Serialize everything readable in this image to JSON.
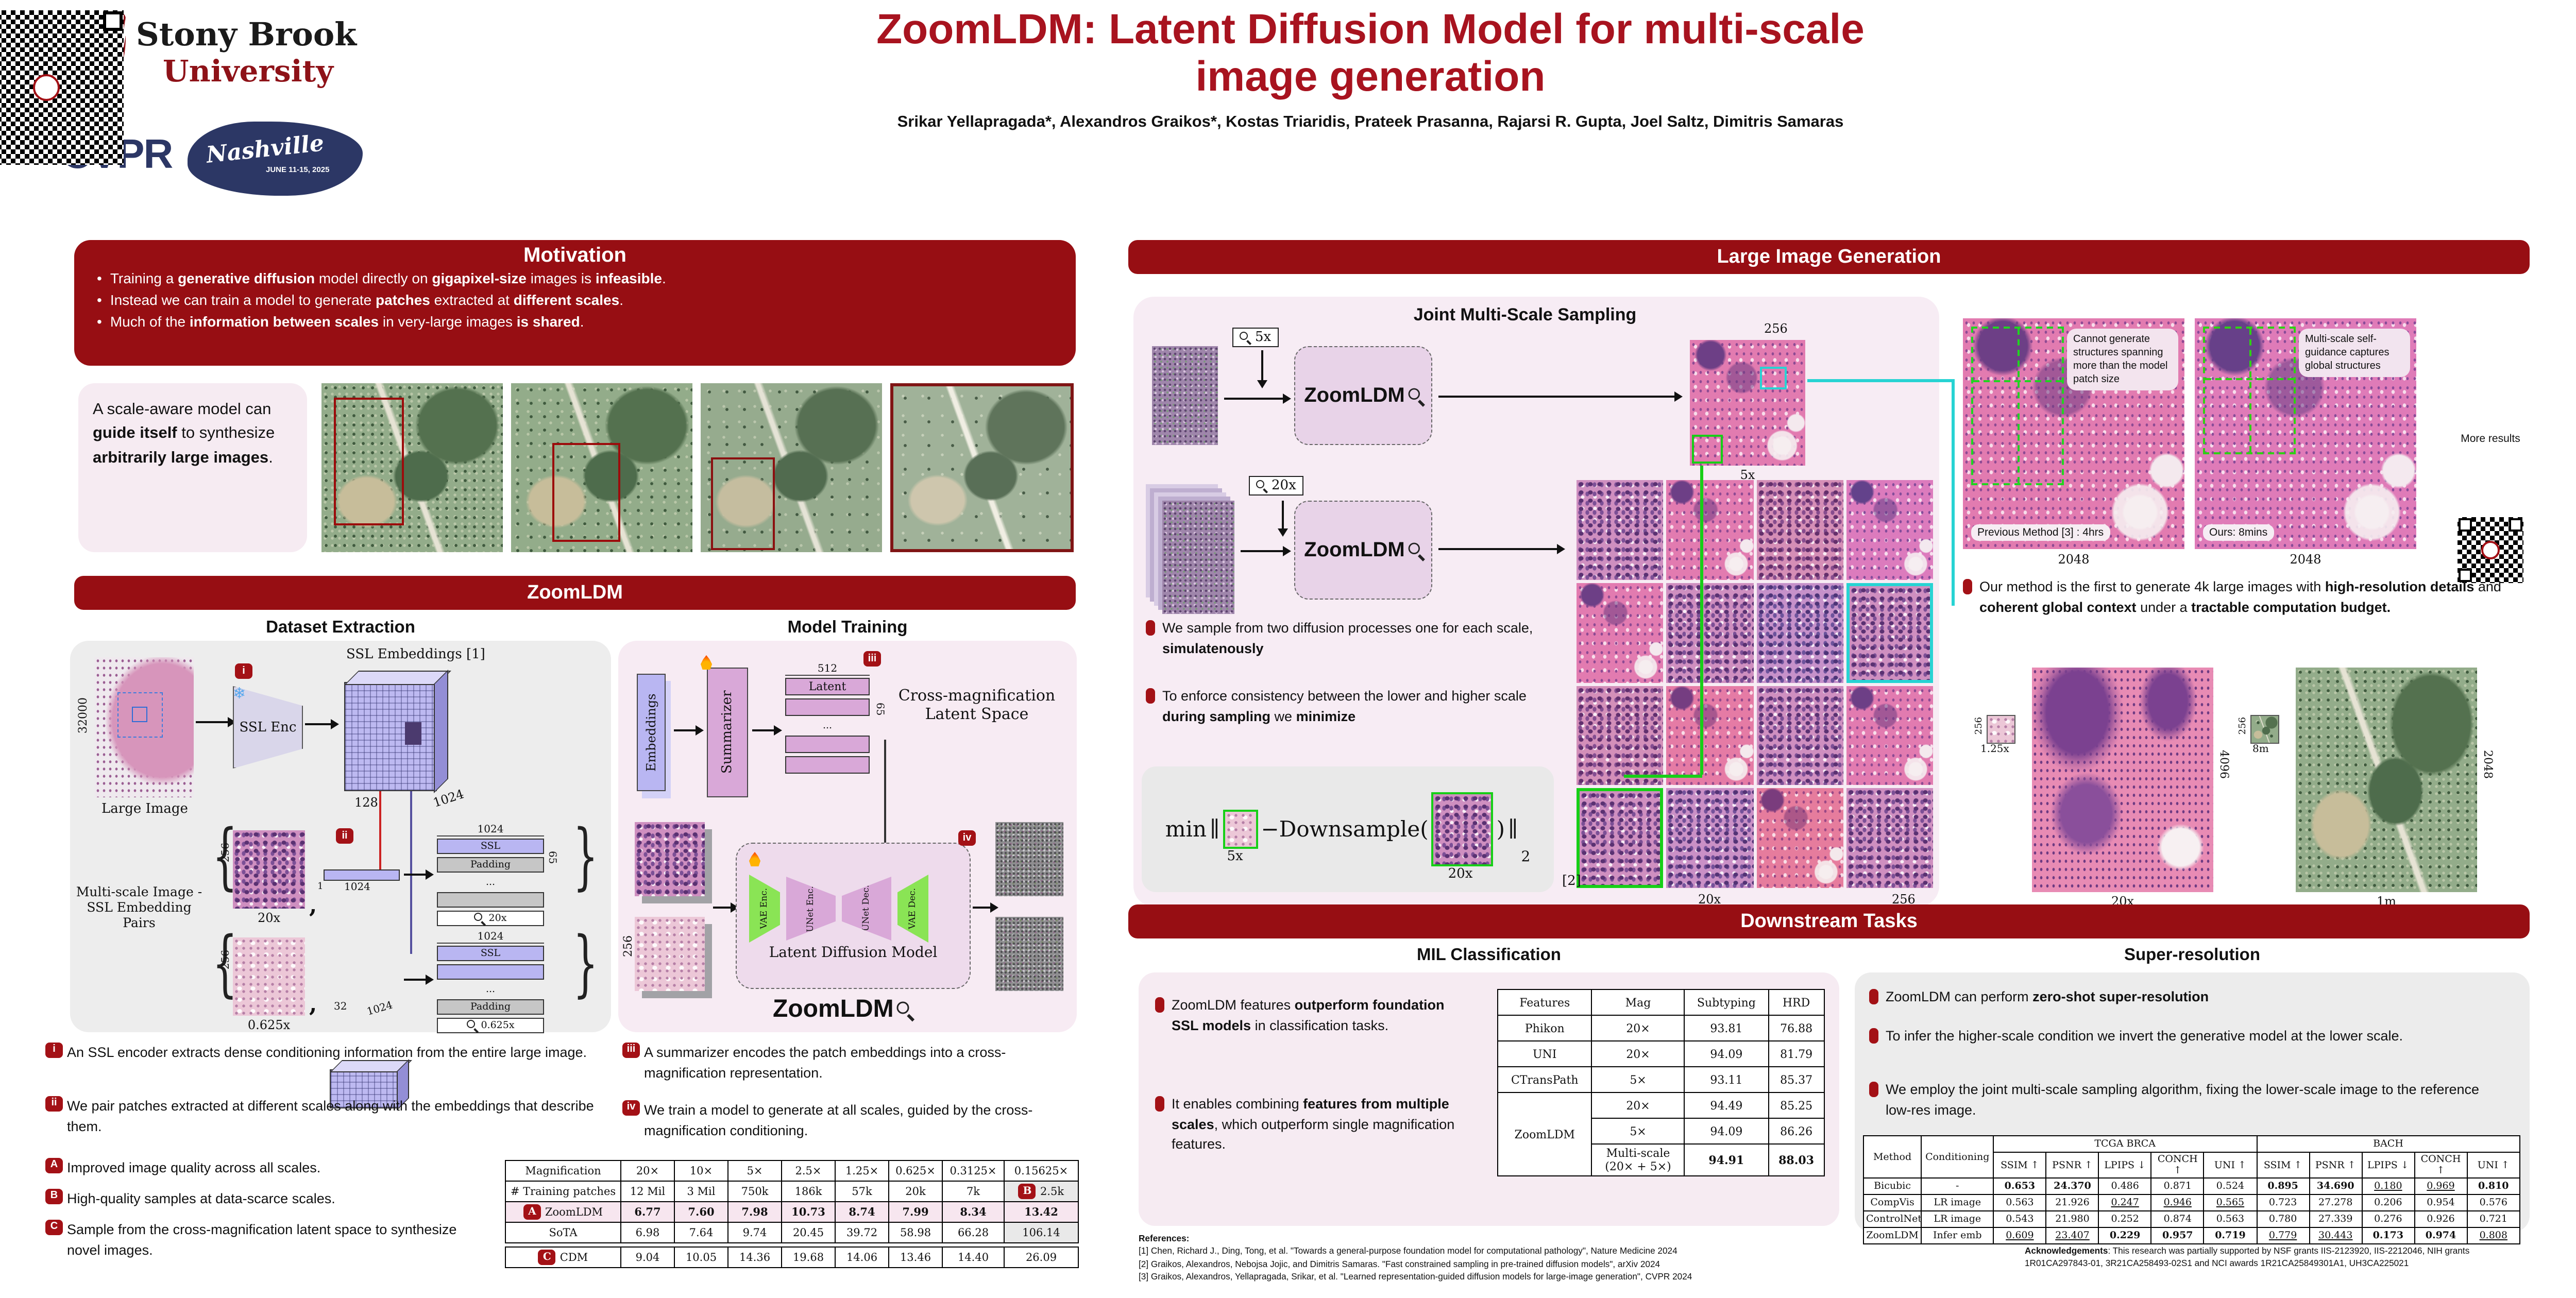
{
  "header": {
    "title_line1": "ZoomLDM: Latent Diffusion Model for multi-scale",
    "title_line2": "image generation",
    "authors": "Srikar Yellapragada*, Alexandros Graikos*, Kostas Triaridis, Prateek Prasanna, Rajarsi R. Gupta, Joel Saltz, Dimitris Samaras",
    "logos": {
      "university_line1": "Stony Brook",
      "university_line2": "University",
      "conference": "CVPR",
      "conference_city": "Nashville",
      "conference_dates": "JUNE 11-15, 2025"
    }
  },
  "motivation": {
    "title": "Motivation",
    "bullets": [
      [
        {
          "t": "Training a "
        },
        {
          "t": "generative diffusion",
          "b": 1
        },
        {
          "t": " model directly on "
        },
        {
          "t": "gigapixel-size",
          "b": 1
        },
        {
          "t": " images is "
        },
        {
          "t": "infeasible",
          "b": 1
        },
        {
          "t": "."
        }
      ],
      [
        {
          "t": "Instead we can train a model to generate "
        },
        {
          "t": "patches",
          "b": 1
        },
        {
          "t": " extracted at "
        },
        {
          "t": "different scales",
          "b": 1
        },
        {
          "t": "."
        }
      ],
      [
        {
          "t": "Much of the "
        },
        {
          "t": "information between scales",
          "b": 1
        },
        {
          "t": " in very-large images "
        },
        {
          "t": "is shared",
          "b": 1
        },
        {
          "t": "."
        }
      ]
    ]
  },
  "scale_aware": {
    "text": [
      {
        "t": "A scale-aware model can "
      },
      {
        "t": "guide itself",
        "b": 1
      },
      {
        "t": " to synthesize "
      },
      {
        "t": "arbitrarily large images",
        "b": 1
      },
      {
        "t": "."
      }
    ]
  },
  "zoomldm": {
    "banner": "ZoomLDM",
    "dataset": {
      "heading": "Dataset Extraction",
      "labels": {
        "large_image_size": "32000",
        "large_image": "Large Image",
        "ssl_enc": "SSL Enc",
        "ssl_embeddings": "SSL Embeddings",
        "ref1": "[1]",
        "dim_128": "128",
        "dim_1024": "1024",
        "marker_i": "i",
        "marker_ii": "ii",
        "pairs_caption_1": "Multi-scale Image -",
        "pairs_caption_2": "SSL Embedding Pairs",
        "patch_256": "256",
        "mag_20x": "20x",
        "mag_0625x": "0.625x",
        "dim_1": "1",
        "dim_32": "32",
        "ssl": "SSL",
        "padding": "Padding",
        "dots": "...",
        "tok_20x": "20x",
        "tok_0625x": "0.625x",
        "dim_65": "65",
        "brace_open": "{",
        "brace_close": "}",
        "comma": ","
      }
    },
    "training": {
      "heading": "Model Training",
      "labels": {
        "embeddings": "Embeddings",
        "summarizer": "Summarizer",
        "dim_512": "512",
        "latent": "Latent",
        "dots": "...",
        "dim_65": "65",
        "cross_mag_1": "Cross-magnification",
        "cross_mag_2": "Latent Space",
        "marker_iii": "iii",
        "marker_iv": "iv",
        "vae_enc": "VAE Enc.",
        "unet_enc": "UNet Enc.",
        "unet_dec": "UNet Dec.",
        "vae_dec": "VAE Dec.",
        "ldm_1": "Latent",
        "ldm_2": "Diffusion Model",
        "zoomldm": "ZoomLDM",
        "patch_256": "256"
      }
    },
    "step_bullets": {
      "i": "An SSL encoder extracts dense conditioning information from the entire large image.",
      "ii": "We pair patches extracted at different scales along with the embeddings that describe them.",
      "iii": "A summarizer encodes the patch embeddings into a cross-magnification representation.",
      "iv": "We train a model to generate at all scales, guided by the cross-magnification conditioning."
    },
    "findings": {
      "a": "Improved image quality across all scales.",
      "b": "High-quality samples at data-scarce scales.",
      "c": "Sample from the cross-magnification latent space to synthesize novel images."
    },
    "markers": {
      "i": "i",
      "ii": "ii",
      "iii": "iii",
      "iv": "iv",
      "a": "A",
      "b": "B",
      "c": "C"
    },
    "fid_table": {
      "rows": [
        {
          "cls": "head",
          "cells": [
            "Magnification",
            "20×",
            "10×",
            "5×",
            "2.5×",
            "1.25×",
            "0.625×",
            "0.3125×",
            "0.15625×"
          ]
        },
        [
          "# Training patches",
          "12 Mil",
          "3 Mil",
          "750k",
          "186k",
          "57k",
          "20k",
          "7k",
          {
            "v": "2.5k",
            "badge": "B",
            "s": "g"
          }
        ],
        {
          "cls": "hl",
          "cells": [
            {
              "v": "ZoomLDM",
              "badge": "A"
            },
            {
              "v": "6.77",
              "s": "b"
            },
            {
              "v": "7.60",
              "s": "b"
            },
            {
              "v": "7.98",
              "s": "b"
            },
            {
              "v": "10.73",
              "s": "b"
            },
            {
              "v": "8.74",
              "s": "b"
            },
            {
              "v": "7.99",
              "s": "b"
            },
            {
              "v": "8.34",
              "s": "b"
            },
            {
              "v": "13.42",
              "s": "b"
            }
          ]
        },
        [
          "SoTA",
          "6.98",
          "7.64",
          "9.74",
          "20.45",
          "39.72",
          "58.98",
          "66.28",
          {
            "v": "106.14",
            "s": "g"
          }
        ]
      ],
      "cdm_rows": [
        [
          {
            "v": "CDM",
            "badge": "C"
          },
          "9.04",
          "10.05",
          "14.36",
          "19.68",
          "14.06",
          "13.46",
          "14.40",
          "26.09"
        ]
      ]
    }
  },
  "large_gen": {
    "banner": "Large Image Generation",
    "figure_title": "Joint Multi-Scale Sampling",
    "labels": {
      "mag5": "5x",
      "mag20": "20x",
      "zoomldm": "ZoomLDM",
      "out_256": "256",
      "out_5x": "5x",
      "grid_20x": "20x",
      "grid_256": "256",
      "ref2": "[2]"
    },
    "bullets": [
      [
        {
          "t": "We sample from two diffusion processes one for each scale, "
        },
        {
          "t": "simulatenously",
          "b": 1
        }
      ],
      [
        {
          "t": "To enforce consistency between the lower and higher scale "
        },
        {
          "t": "during sampling",
          "b": 1
        },
        {
          "t": " we "
        },
        {
          "t": "minimize",
          "b": 1
        }
      ]
    ],
    "equation": {
      "min": "min",
      "bar": "∥",
      "minus": "−",
      "func": "Downsample(",
      "close": ")",
      "sub": "2",
      "label_low": "5x",
      "label_high": "20x"
    },
    "right": {
      "ann_left": "Cannot generate structures spanning more than the model patch size",
      "ann_right": "Multi-scale self-guidance captures global structures",
      "cap_left": "Previous Method [3] : 4hrs",
      "cap_right": "Ours: 8mins",
      "size_left": "2048",
      "size_right": "2048",
      "qr_caption": "More results",
      "bullet": [
        {
          "t": "Our method is the first to generate 4k large images with "
        },
        {
          "t": "high-resolution details",
          "b": 1
        },
        {
          "t": " and "
        },
        {
          "t": "coherent global context",
          "b": 1
        },
        {
          "t": " under a "
        },
        {
          "t": "tractable computation budget.",
          "b": 1
        }
      ],
      "bottom": {
        "t1_256": "256",
        "t1_mag": "1.25x",
        "big1_cap": "20x",
        "big1_size": "4096",
        "t2_256": "256",
        "t2_mag": "8m",
        "big2_cap": "1m",
        "big2_size": "2048"
      }
    }
  },
  "downstream": {
    "banner": "Downstream Tasks",
    "mil": {
      "heading": "MIL Classification",
      "bullets": [
        [
          {
            "t": "ZoomLDM features "
          },
          {
            "t": "outperform foundation SSL models",
            "b": 1
          },
          {
            "t": " in classification tasks."
          }
        ],
        [
          {
            "t": "It enables combining "
          },
          {
            "t": "features from multiple scales",
            "b": 1
          },
          {
            "t": ", which outperform single magnification features."
          }
        ]
      ],
      "table": {
        "header": [
          "Features",
          "Mag",
          "Subtyping",
          "HRD"
        ],
        "rows_top": [
          [
            "Phikon",
            "20×",
            "93.81",
            "76.88"
          ],
          [
            "UNI",
            "20×",
            "94.09",
            "81.79"
          ],
          [
            "CTransPath",
            "5×",
            "93.11",
            "85.37"
          ]
        ],
        "group_label": "ZoomLDM",
        "rows_group": [
          [
            "20×",
            "94.49",
            "85.25"
          ],
          [
            "5×",
            "94.09",
            "86.26"
          ],
          [
            {
              "v": "Multi-scale",
              "sub": "(20× + 5×)"
            },
            {
              "v": "94.91",
              "s": "b"
            },
            {
              "v": "88.03",
              "s": "b"
            }
          ]
        ]
      }
    },
    "sr": {
      "heading": "Super-resolution",
      "bullets": [
        [
          {
            "t": "ZoomLDM can perform "
          },
          {
            "t": "zero-shot super-resolution",
            "b": 1
          }
        ],
        [
          {
            "t": "To infer the higher-scale condition we invert the generative model at the lower scale."
          }
        ],
        [
          {
            "t": "We employ the joint multi-scale sampling algorithm, fixing the lower-scale image to the reference low-res image."
          }
        ]
      ],
      "table": {
        "col_method": "Method",
        "col_cond": "Conditioning",
        "group1": "TCGA BRCA",
        "group2": "BACH",
        "metrics": [
          "SSIM ↑",
          "PSNR ↑",
          "LPIPS ↓",
          "CONCH ↑",
          "UNI ↑"
        ],
        "rows": [
          [
            "Bicubic",
            "-",
            {
              "v": "0.653",
              "s": "b"
            },
            {
              "v": "24.370",
              "s": "b"
            },
            "0.486",
            "0.871",
            "0.524",
            {
              "v": "0.895",
              "s": "b"
            },
            {
              "v": "34.690",
              "s": "b"
            },
            {
              "v": "0.180",
              "s": "u"
            },
            {
              "v": "0.969",
              "s": "u"
            },
            {
              "v": "0.810",
              "s": "b"
            }
          ],
          [
            "CompVis",
            "LR image",
            "0.563",
            "21.926",
            {
              "v": "0.247",
              "s": "u"
            },
            {
              "v": "0.946",
              "s": "u"
            },
            {
              "v": "0.565",
              "s": "u"
            },
            "0.723",
            "27.278",
            "0.206",
            "0.954",
            "0.576"
          ],
          [
            "ControlNet",
            "LR image",
            "0.543",
            "21.980",
            "0.252",
            "0.874",
            "0.563",
            "0.780",
            "27.339",
            "0.276",
            "0.926",
            "0.721"
          ],
          [
            "ZoomLDM",
            "Infer emb",
            {
              "v": "0.609",
              "s": "u"
            },
            {
              "v": "23.407",
              "s": "u"
            },
            {
              "v": "0.229",
              "s": "b"
            },
            {
              "v": "0.957",
              "s": "b"
            },
            {
              "v": "0.719",
              "s": "b"
            },
            {
              "v": "0.779",
              "s": "u"
            },
            {
              "v": "30.443",
              "s": "u"
            },
            {
              "v": "0.173",
              "s": "b"
            },
            {
              "v": "0.974",
              "s": "b"
            },
            {
              "v": "0.808",
              "s": "u"
            }
          ]
        ]
      }
    },
    "references": {
      "title": "References:",
      "items": [
        "[1] Chen, Richard J., Ding, Tong, et al. \"Towards a general-purpose foundation model for computational pathology\", Nature Medicine 2024",
        "[2] Graikos, Alexandros, Nebojsa Jojic, and Dimitris Samaras. \"Fast constrained sampling in pre-trained diffusion models\", arXiv 2024",
        "[3] Graikos, Alexandros, Yellapragada, Srikar, et al. \"Learned representation-guided diffusion models for large-image generation\", CVPR 2024"
      ]
    },
    "acknowledgements": {
      "title": "Acknowledgements",
      "text": ": This research was partially supported by NSF grants IIS-2123920, IIS-2212046, NIH grants 1R01CA297843-01, 3R21CA258493-02S1 and NCI awards 1R21CA25849301A1, UH3CA225021"
    }
  }
}
